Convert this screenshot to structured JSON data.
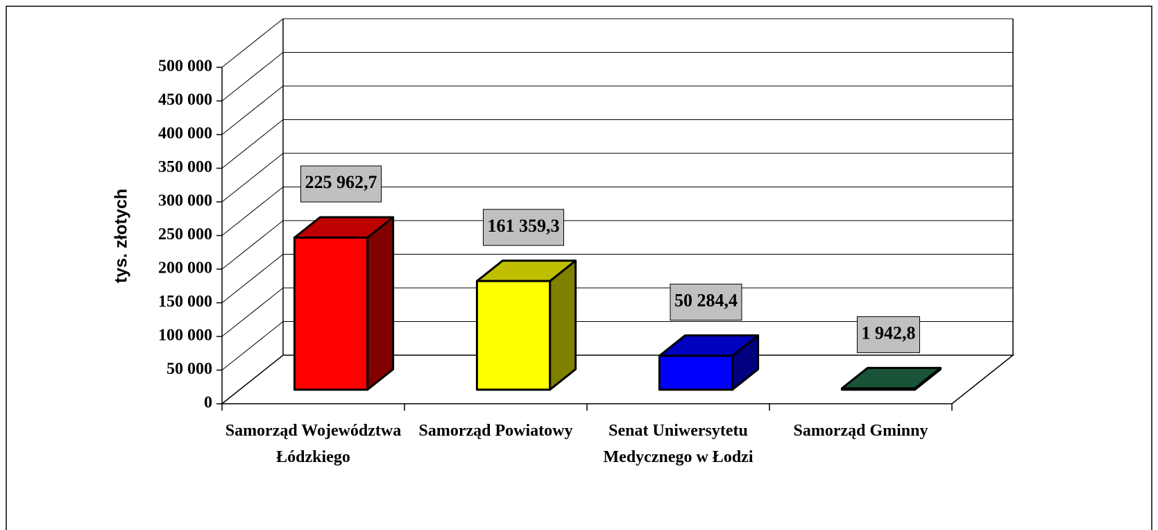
{
  "chart_data": {
    "type": "bar",
    "y_label": "tys. złotych",
    "categories": [
      "Samorząd Województwa Łódzkiego",
      "Samorząd Powiatowy",
      "Senat Uniwersytetu Medycznego w Łodzi",
      "Samorząd Gminny"
    ],
    "values": [
      225962.7,
      161359.3,
      50284.4,
      1942.8
    ],
    "value_labels": [
      "225 962,7",
      "161 359,3",
      "50 284,4",
      "1 942,8"
    ],
    "colors": [
      "#ff0000",
      "#ffff00",
      "#0000ff",
      "#236e4b"
    ],
    "ylim": [
      0,
      500000
    ],
    "yticks": [
      0,
      {
        "value": 50000,
        "label": "50 000"
      },
      {
        "value": 100000,
        "label": "100 000"
      },
      {
        "value": 150000,
        "label": "150 000"
      },
      {
        "value": 200000,
        "label": "200 000"
      },
      {
        "value": 250000,
        "label": "250 000"
      },
      {
        "value": 300000,
        "label": "300 000"
      },
      {
        "value": 350000,
        "label": "350 000"
      },
      {
        "value": 400000,
        "label": "400 000"
      },
      {
        "value": 450000,
        "label": "450 000"
      },
      {
        "value": 500000,
        "label": "500 000"
      }
    ],
    "grid": true
  }
}
